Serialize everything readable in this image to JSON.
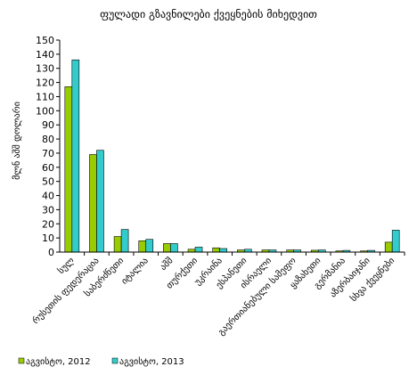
{
  "chart_data": {
    "type": "bar",
    "title": "ფულადი გზავნილები ქვეყნების მიხედვით",
    "ylabel": "მლნ აშშ დოლარი",
    "xlabel": "",
    "ylim": [
      0,
      150
    ],
    "yticks": [
      0,
      10,
      20,
      30,
      40,
      50,
      60,
      70,
      80,
      90,
      100,
      110,
      120,
      130,
      140,
      150
    ],
    "grid": false,
    "legend_position": "bottom",
    "categories": [
      "სულ",
      "რუსეთის ფედერაცია",
      "საბერძნეთი",
      "იტალია",
      "აშშ",
      "თურქეთი",
      "უკრაინა",
      "ესპანეთი",
      "ისრაელი",
      "გაერთიანებული სამეფო",
      "ყაზახეთი",
      "გერმანია",
      "აზერბაიჯანი",
      "სხვა ქვეყნები"
    ],
    "series": [
      {
        "name": "აგვისტო, 2012",
        "color": "#99cc00",
        "values": [
          117,
          69,
          11,
          8,
          6,
          2,
          3,
          1.5,
          1.5,
          1.5,
          1.3,
          0.8,
          0.8,
          7
        ]
      },
      {
        "name": "აგვისტო, 2013",
        "color": "#33cccc",
        "values": [
          136,
          72,
          16,
          9,
          6,
          3.5,
          2.5,
          2,
          1.5,
          1.5,
          1.5,
          1.2,
          1.2,
          15.5
        ]
      }
    ]
  }
}
